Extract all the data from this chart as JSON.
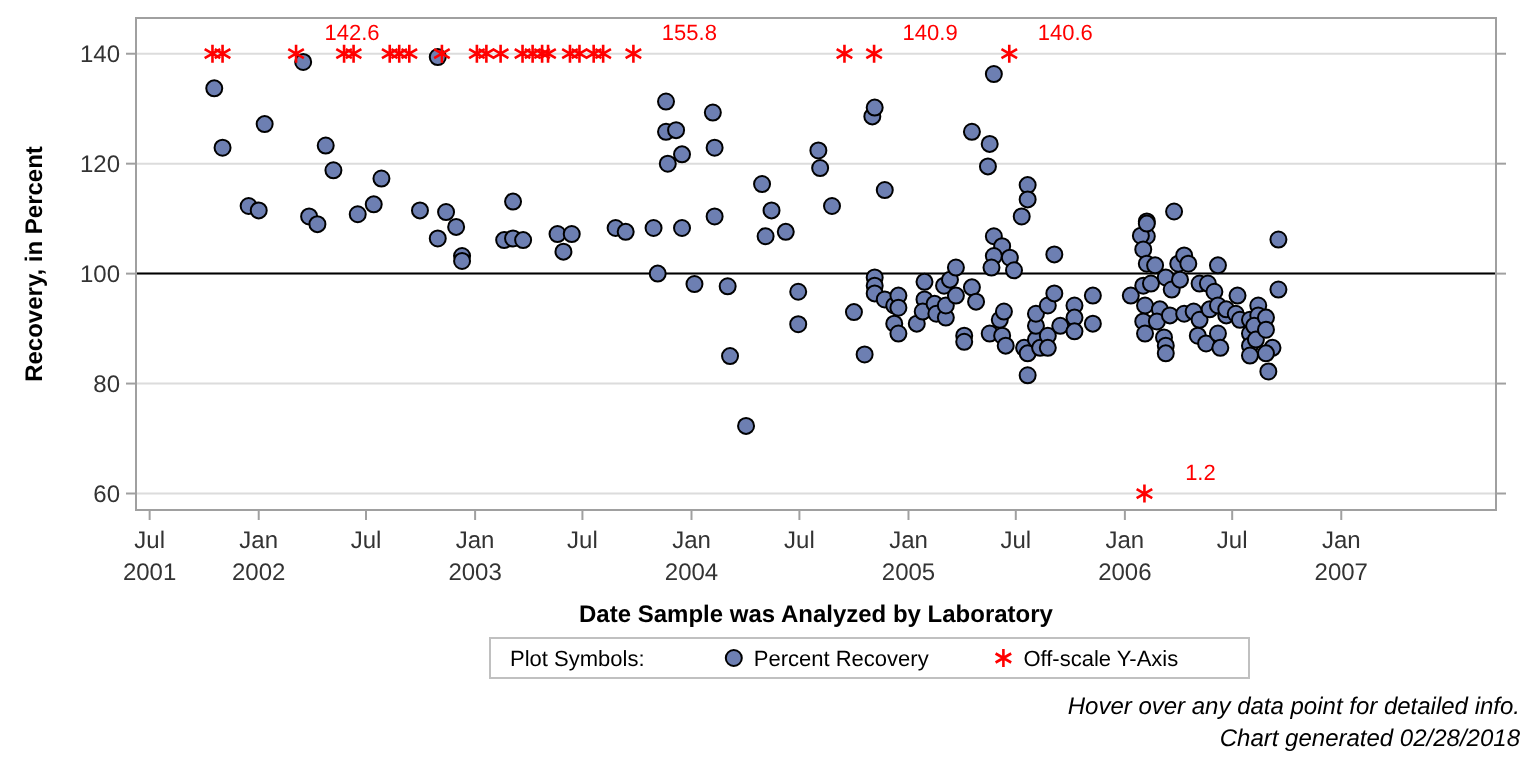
{
  "chart_data": {
    "type": "scatter",
    "xlabel": "Date Sample was Analyzed by Laboratory",
    "ylabel": "Recovery, in Percent",
    "legend_title": "Plot Symbols:",
    "legend": "bottom",
    "grid": "y",
    "xlim": [
      "2001-06-08",
      "2007-09-19"
    ],
    "xticks": [
      {
        "value": "2001-07-01",
        "label": "Jul\n2001"
      },
      {
        "value": "2002-01-01",
        "label": "Jan\n2002"
      },
      {
        "value": "2002-07-01",
        "label": "Jul"
      },
      {
        "value": "2003-01-01",
        "label": "Jan\n2003"
      },
      {
        "value": "2003-07-01",
        "label": "Jul"
      },
      {
        "value": "2004-01-01",
        "label": "Jan\n2004"
      },
      {
        "value": "2004-07-01",
        "label": "Jul"
      },
      {
        "value": "2005-01-01",
        "label": "Jan\n2005"
      },
      {
        "value": "2005-07-01",
        "label": "Jul"
      },
      {
        "value": "2006-01-01",
        "label": "Jan\n2006"
      },
      {
        "value": "2006-07-01",
        "label": "Jul"
      },
      {
        "value": "2007-01-01",
        "label": "Jan\n2007"
      }
    ],
    "ylim": [
      57,
      146.5
    ],
    "yticks": [
      60,
      80,
      100,
      120,
      140
    ],
    "ref_lines": [
      {
        "axis": "y",
        "value": 100,
        "color": "#000000"
      }
    ],
    "series": [
      {
        "name": "Percent Recovery",
        "color": "#6d7fb2",
        "marker": "circle",
        "x": [
          "2001-10-18",
          "2001-11-01",
          "2001-12-15",
          "2002-01-01",
          "2002-01-11",
          "2002-03-17",
          "2002-03-27",
          "2002-04-10",
          "2002-04-24",
          "2002-05-07",
          "2002-06-17",
          "2002-07-14",
          "2002-07-27",
          "2002-09-30",
          "2002-10-30",
          "2002-10-30",
          "2002-11-13",
          "2002-11-30",
          "2002-12-10",
          "2002-12-10",
          "2003-02-19",
          "2003-03-06",
          "2003-03-06",
          "2003-03-23",
          "2003-05-20",
          "2003-06-13",
          "2003-05-30",
          "2003-08-26",
          "2003-09-12",
          "2003-10-29",
          "2003-11-05",
          "2003-11-19",
          "2003-11-19",
          "2003-12-06",
          "2003-11-22",
          "2003-12-16",
          "2003-12-16",
          "2004-01-06",
          "2004-02-06",
          "2004-02-09",
          "2004-02-09",
          "2004-03-02",
          "2004-04-29",
          "2004-05-15",
          "2004-05-05",
          "2004-06-08",
          "2004-08-02",
          "2004-08-05",
          "2004-08-25",
          "2004-06-29",
          "2004-10-01",
          "2004-03-06",
          "2004-04-02",
          "2004-06-29",
          "2004-10-19",
          "2004-11-01",
          "2004-11-05",
          "2004-11-22",
          "2005-05-25",
          "2005-04-18",
          "2005-05-18",
          "2005-05-15",
          "2005-07-21",
          "2005-07-21",
          "2005-07-11",
          "2005-05-25",
          "2005-06-08",
          "2005-05-25",
          "2005-05-21",
          "2005-06-21",
          "2005-06-28",
          "2005-09-04",
          "2006-02-07",
          "2006-02-07",
          "2006-03-25",
          "2006-09-17",
          "2006-09-17",
          "2004-11-05",
          "2004-11-05",
          "2004-11-05",
          "2004-11-22",
          "2004-12-08",
          "2004-12-15",
          "2004-12-15",
          "2004-12-08",
          "2004-12-15",
          "2005-01-15",
          "2005-01-28",
          "2005-01-28",
          "2005-01-25",
          "2005-02-14",
          "2005-02-17",
          "2005-03-05",
          "2005-03-05",
          "2005-03-02",
          "2005-03-12",
          "2005-03-22",
          "2005-03-22",
          "2005-04-18",
          "2005-04-25",
          "2005-04-05",
          "2005-04-05",
          "2005-05-18",
          "2005-06-08",
          "2005-06-14",
          "2005-06-04",
          "2005-06-11",
          "2005-07-15",
          "2005-07-21",
          "2005-07-21",
          "2005-08-04",
          "2005-08-04",
          "2005-08-04",
          "2005-08-11",
          "2005-08-24",
          "2005-08-24",
          "2005-08-24",
          "2005-09-04",
          "2005-09-14",
          "2005-10-08",
          "2005-10-08",
          "2005-10-08",
          "2005-11-08",
          "2005-11-08",
          "2006-01-11",
          "2006-01-28",
          "2006-02-07",
          "2006-02-01",
          "2006-02-07",
          "2006-02-01",
          "2006-02-04",
          "2006-02-01",
          "2006-02-04",
          "2006-02-14",
          "2006-02-21",
          "2006-03-01",
          "2006-02-24",
          "2006-03-08",
          "2006-03-11",
          "2006-03-11",
          "2006-03-18",
          "2006-03-11",
          "2006-03-21",
          "2006-04-01",
          "2006-04-11",
          "2006-04-18",
          "2006-04-04",
          "2006-04-11",
          "2006-04-27",
          "2006-05-07",
          "2006-05-07",
          "2006-05-21",
          "2006-06-01",
          "2006-05-04",
          "2006-05-18",
          "2006-06-07",
          "2006-06-07",
          "2006-06-11",
          "2006-05-24",
          "2006-06-07",
          "2006-06-21",
          "2006-06-21",
          "2006-07-07",
          "2006-07-10",
          "2006-07-14",
          "2006-07-31",
          "2006-07-31",
          "2006-07-31",
          "2006-07-31",
          "2006-08-14",
          "2006-08-14",
          "2006-08-07",
          "2006-08-10",
          "2006-08-27",
          "2006-08-27",
          "2006-08-31",
          "2006-09-07",
          "2006-08-27"
        ],
        "values": [
          133.7,
          122.9,
          112.3,
          111.5,
          127.2,
          138.5,
          110.4,
          109.0,
          123.3,
          118.8,
          110.8,
          112.6,
          117.3,
          111.5,
          106.4,
          139.4,
          111.2,
          108.5,
          103.2,
          102.3,
          106.1,
          113.1,
          106.4,
          106.1,
          107.2,
          107.2,
          104.0,
          108.3,
          107.6,
          108.3,
          100.0,
          131.3,
          125.8,
          126.1,
          120.0,
          121.7,
          108.3,
          98.1,
          129.3,
          122.9,
          110.4,
          97.7,
          116.3,
          111.5,
          106.8,
          107.6,
          122.4,
          119.2,
          112.3,
          96.7,
          93.0,
          85.0,
          72.3,
          90.8,
          85.3,
          128.6,
          130.2,
          115.2,
          136.3,
          125.8,
          123.6,
          119.5,
          116.1,
          113.5,
          110.4,
          106.8,
          105.0,
          103.2,
          101.1,
          102.9,
          100.6,
          103.5,
          109.5,
          106.8,
          111.3,
          106.2,
          97.1,
          99.3,
          97.8,
          96.4,
          95.3,
          94.2,
          96.0,
          93.8,
          90.9,
          89.1,
          90.9,
          98.5,
          95.3,
          93.1,
          94.5,
          92.7,
          92.0,
          94.2,
          97.8,
          98.9,
          101.1,
          96.0,
          97.5,
          94.9,
          88.7,
          87.6,
          89.1,
          88.7,
          86.9,
          91.6,
          93.1,
          86.5,
          85.5,
          81.5,
          88.0,
          90.5,
          92.7,
          86.5,
          88.7,
          86.5,
          94.2,
          96.4,
          90.5,
          94.2,
          92.0,
          89.5,
          96.0,
          90.9,
          96.0,
          106.9,
          109.1,
          104.4,
          101.8,
          97.8,
          94.2,
          91.3,
          89.1,
          98.2,
          101.5,
          93.5,
          91.3,
          88.4,
          86.9,
          85.5,
          92.4,
          99.3,
          97.1,
          101.8,
          103.3,
          101.8,
          98.9,
          92.7,
          93.1,
          91.6,
          98.2,
          98.2,
          96.7,
          88.7,
          87.3,
          101.5,
          89.1,
          86.5,
          93.5,
          94.2,
          92.4,
          93.5,
          92.7,
          96.0,
          91.6,
          91.6,
          89.1,
          86.9,
          85.1,
          94.2,
          92.4,
          90.5,
          88.0,
          92.0,
          89.8,
          82.2,
          86.5,
          85.5
        ]
      },
      {
        "name": "Off-scale Y-Axis",
        "color": "#ff0000",
        "marker": "cross",
        "x": [
          "2001-10-15",
          "2001-11-01",
          "2002-03-05",
          "2002-05-25",
          "2002-06-10",
          "2002-08-10",
          "2002-08-26",
          "2002-09-12",
          "2002-11-06",
          "2003-01-04",
          "2003-01-20",
          "2003-02-13",
          "2003-03-22",
          "2003-04-08",
          "2003-04-24",
          "2003-05-04",
          "2003-06-10",
          "2003-06-26",
          "2003-07-20",
          "2003-08-05",
          "2003-09-25",
          "2004-09-15",
          "2004-11-04",
          "2005-06-20",
          "2006-02-03"
        ],
        "values": [
          140,
          140,
          140,
          140,
          140,
          140,
          140,
          140,
          140,
          140,
          140,
          140,
          140,
          140,
          140,
          140,
          140,
          140,
          140,
          140,
          140,
          140,
          140,
          140,
          60
        ]
      }
    ],
    "annotations": [
      {
        "text": "142.6",
        "x": "2002-03-05",
        "y": 140
      },
      {
        "text": "155.8",
        "x": "2003-09-25",
        "y": 140
      },
      {
        "text": "140.9",
        "x": "2004-11-04",
        "y": 140
      },
      {
        "text": "140.6",
        "x": "2005-06-20",
        "y": 140
      },
      {
        "text": "1.2",
        "x": "2006-02-03",
        "y": 60
      },
      "Hover over any data point for detailed info.",
      "Chart generated 02/28/2018"
    ]
  }
}
